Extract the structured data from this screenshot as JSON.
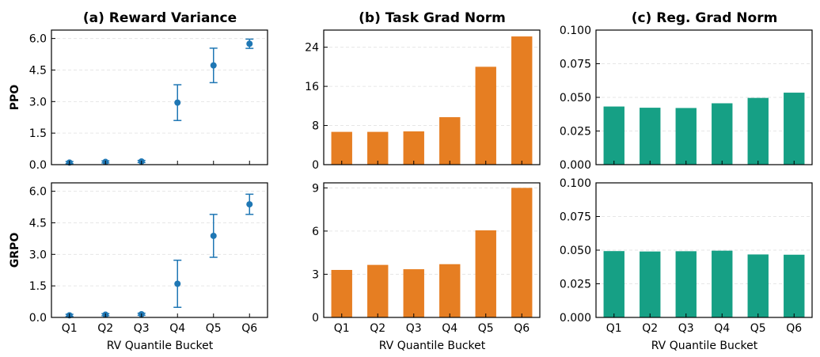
{
  "columns": [
    {
      "title": "(a) Reward Variance"
    },
    {
      "title": "(b) Task Grad Norm"
    },
    {
      "title": "(c) Reg. Grad Norm"
    }
  ],
  "rows": [
    {
      "label": "PPO"
    },
    {
      "label": "GRPO"
    }
  ],
  "xlabel": "RV Quantile Bucket",
  "colors": {
    "errorbar": "#1f77b4",
    "task": "#e67e22",
    "reg": "#16a085"
  },
  "chart_data": [
    {
      "type": "scatter",
      "id": "ppo-reward-variance",
      "style": "errorbar",
      "categories": [
        "Q1",
        "Q2",
        "Q3",
        "Q4",
        "Q5",
        "Q6"
      ],
      "values": [
        0.1,
        0.13,
        0.15,
        2.95,
        4.72,
        5.75
      ],
      "errors": [
        0.05,
        0.05,
        0.05,
        0.85,
        0.82,
        0.22
      ],
      "ylim": [
        0,
        6.4
      ],
      "yticks": [
        "0.0",
        "1.5",
        "3.0",
        "4.5",
        "6.0"
      ],
      "show_xticklabels": false,
      "grid": true
    },
    {
      "type": "bar",
      "id": "ppo-task-grad-norm",
      "categories": [
        "Q1",
        "Q2",
        "Q3",
        "Q4",
        "Q5",
        "Q6"
      ],
      "values": [
        6.7,
        6.7,
        6.8,
        9.7,
        20.0,
        26.2
      ],
      "ylim": [
        0,
        27.5
      ],
      "yticks": [
        "0",
        "8",
        "16",
        "24"
      ],
      "show_xticklabels": false,
      "grid": true
    },
    {
      "type": "bar",
      "id": "ppo-reg-grad-norm",
      "categories": [
        "Q1",
        "Q2",
        "Q3",
        "Q4",
        "Q5",
        "Q6"
      ],
      "values": [
        0.0432,
        0.0423,
        0.0421,
        0.0456,
        0.0496,
        0.0535
      ],
      "ylim": [
        0,
        0.1
      ],
      "yticks": [
        "0.000",
        "0.025",
        "0.050",
        "0.075",
        "0.100"
      ],
      "show_xticklabels": false,
      "grid": true
    },
    {
      "type": "scatter",
      "id": "grpo-reward-variance",
      "style": "errorbar",
      "categories": [
        "Q1",
        "Q2",
        "Q3",
        "Q4",
        "Q5",
        "Q6"
      ],
      "values": [
        0.1,
        0.13,
        0.15,
        1.6,
        3.88,
        5.38
      ],
      "errors": [
        0.05,
        0.05,
        0.05,
        1.12,
        1.02,
        0.48
      ],
      "ylim": [
        0,
        6.4
      ],
      "yticks": [
        "0.0",
        "1.5",
        "3.0",
        "4.5",
        "6.0"
      ],
      "show_xticklabels": true,
      "grid": true
    },
    {
      "type": "bar",
      "id": "grpo-task-grad-norm",
      "categories": [
        "Q1",
        "Q2",
        "Q3",
        "Q4",
        "Q5",
        "Q6"
      ],
      "values": [
        3.3,
        3.65,
        3.35,
        3.7,
        6.05,
        9.0
      ],
      "ylim": [
        0,
        9.35
      ],
      "yticks": [
        "0",
        "3",
        "6",
        "9"
      ],
      "show_xticklabels": true,
      "grid": true
    },
    {
      "type": "bar",
      "id": "grpo-reg-grad-norm",
      "categories": [
        "Q1",
        "Q2",
        "Q3",
        "Q4",
        "Q5",
        "Q6"
      ],
      "values": [
        0.0493,
        0.049,
        0.0492,
        0.0496,
        0.0468,
        0.0466
      ],
      "ylim": [
        0,
        0.1
      ],
      "yticks": [
        "0.000",
        "0.025",
        "0.050",
        "0.075",
        "0.100"
      ],
      "show_xticklabels": true,
      "grid": true
    }
  ]
}
